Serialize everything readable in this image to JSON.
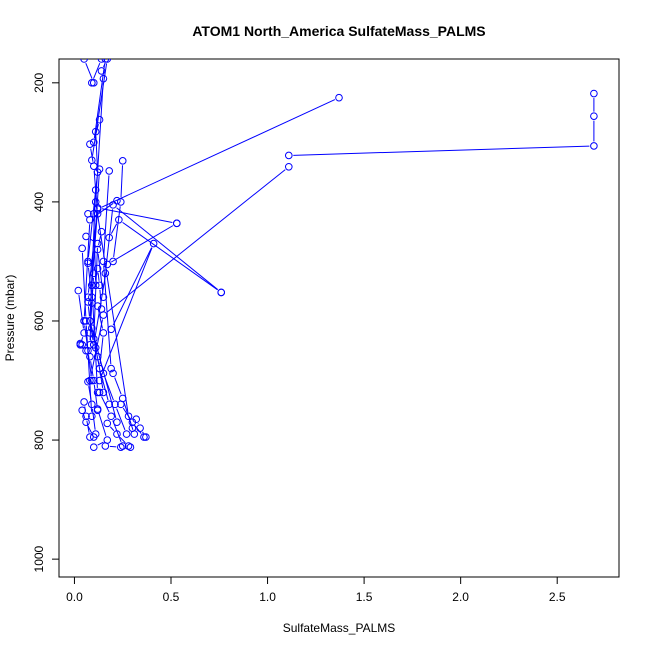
{
  "chart_data": {
    "type": "line",
    "title": "ATOM1 North_America SulfateMass_PALMS",
    "xlabel": "SulfateMass_PALMS",
    "ylabel": "Pressure (mbar)",
    "xlim": [
      -0.08,
      2.82
    ],
    "ylim": [
      1030,
      160
    ],
    "y_reversed": true,
    "x_ticks": [
      0.0,
      0.5,
      1.0,
      1.5,
      2.0,
      2.5
    ],
    "x_tick_labels": [
      "0.0",
      "0.5",
      "1.0",
      "1.5",
      "2.0",
      "2.5"
    ],
    "y_ticks": [
      200,
      400,
      600,
      800,
      1000
    ],
    "y_tick_labels": [
      "200",
      "400",
      "600",
      "800",
      "1000"
    ],
    "grid": false,
    "legend": "none",
    "colors": {
      "series": "#0000ff",
      "axis": "#000000"
    },
    "series": [
      {
        "values": [
          [
            2.69,
            218
          ],
          [
            2.69,
            256
          ],
          [
            2.69,
            306
          ],
          [
            1.11,
            322
          ]
        ]
      },
      {
        "values": [
          [
            1.37,
            225
          ],
          [
            0.12,
            412
          ],
          [
            0.09,
            540
          ]
        ]
      },
      {
        "values": [
          [
            1.11,
            341
          ],
          [
            0.15,
            590
          ],
          [
            0.08,
            700
          ]
        ]
      },
      {
        "values": [
          [
            0.76,
            552
          ],
          [
            0.2,
            405
          ],
          [
            0.16,
            520
          ]
        ]
      },
      {
        "values": [
          [
            0.76,
            552
          ],
          [
            0.23,
            430
          ],
          [
            0.18,
            460
          ]
        ]
      },
      {
        "values": [
          [
            0.53,
            436
          ],
          [
            0.17,
            505
          ],
          [
            0.1,
            640
          ]
        ]
      },
      {
        "values": [
          [
            0.53,
            436
          ],
          [
            0.12,
            410
          ],
          [
            0.07,
            560
          ]
        ]
      },
      {
        "values": [
          [
            0.22,
            398
          ],
          [
            0.08,
            430
          ],
          [
            0.05,
            600
          ]
        ]
      },
      {
        "values": [
          [
            0.19,
            614
          ],
          [
            0.41,
            470
          ],
          [
            0.13,
            700
          ]
        ]
      },
      {
        "values": [
          [
            0.25,
            331
          ],
          [
            0.24,
            400
          ],
          [
            0.2,
            500
          ]
        ]
      },
      {
        "values": [
          [
            0.09,
            200
          ],
          [
            0.14,
            160
          ]
        ]
      },
      {
        "values": [
          [
            0.1,
            200
          ],
          [
            0.05,
            160
          ]
        ]
      },
      {
        "values": [
          [
            0.15,
            193
          ],
          [
            0.11,
            400
          ],
          [
            0.28,
            760
          ],
          [
            0.3,
            780
          ]
        ]
      },
      {
        "values": [
          [
            0.13,
            262
          ],
          [
            0.1,
            300
          ],
          [
            0.16,
            160
          ]
        ]
      },
      {
        "values": [
          [
            0.11,
            282
          ],
          [
            0.12,
            350
          ],
          [
            0.07,
            500
          ]
        ]
      },
      {
        "values": [
          [
            0.08,
            303
          ],
          [
            0.1,
            340
          ],
          [
            0.12,
            420
          ]
        ]
      },
      {
        "values": [
          [
            0.09,
            330
          ],
          [
            0.17,
            160
          ],
          [
            0.14,
            180
          ]
        ]
      },
      {
        "values": [
          [
            0.13,
            345
          ],
          [
            0.09,
            540
          ],
          [
            0.12,
            720
          ]
        ]
      },
      {
        "values": [
          [
            0.18,
            348
          ],
          [
            0.15,
            500
          ],
          [
            0.19,
            680
          ]
        ]
      },
      {
        "values": [
          [
            0.11,
            380
          ],
          [
            0.08,
            600
          ],
          [
            0.22,
            770
          ]
        ]
      },
      {
        "values": [
          [
            0.07,
            420
          ],
          [
            0.1,
            420
          ],
          [
            0.11,
            540
          ]
        ]
      },
      {
        "values": [
          [
            0.04,
            478
          ],
          [
            0.06,
            600
          ],
          [
            0.09,
            760
          ]
        ]
      },
      {
        "values": [
          [
            0.06,
            458
          ],
          [
            0.12,
            470
          ],
          [
            0.1,
            630
          ]
        ]
      },
      {
        "values": [
          [
            0.14,
            450
          ],
          [
            0.12,
            480
          ],
          [
            0.15,
            560
          ]
        ]
      },
      {
        "values": [
          [
            0.07,
            503
          ],
          [
            0.09,
            560
          ],
          [
            0.08,
            640
          ]
        ]
      },
      {
        "values": [
          [
            0.12,
            512
          ],
          [
            0.13,
            540
          ],
          [
            0.14,
            580
          ]
        ]
      },
      {
        "values": [
          [
            0.02,
            549
          ],
          [
            0.05,
            620
          ],
          [
            0.03,
            640
          ]
        ]
      },
      {
        "values": [
          [
            0.1,
            520
          ],
          [
            0.09,
            570
          ],
          [
            0.08,
            620
          ]
        ]
      },
      {
        "values": [
          [
            0.07,
            568
          ],
          [
            0.08,
            600
          ],
          [
            0.1,
            640
          ]
        ]
      },
      {
        "values": [
          [
            0.12,
            575
          ],
          [
            0.15,
            620
          ],
          [
            0.13,
            680
          ]
        ]
      },
      {
        "values": [
          [
            0.05,
            600
          ],
          [
            0.07,
            650
          ],
          [
            0.09,
            700
          ]
        ]
      },
      {
        "values": [
          [
            0.09,
            612
          ],
          [
            0.12,
            660
          ],
          [
            0.15,
            720
          ]
        ]
      },
      {
        "values": [
          [
            0.03,
            638
          ],
          [
            0.04,
            640
          ],
          [
            0.06,
            650
          ]
        ]
      },
      {
        "values": [
          [
            0.11,
            645
          ],
          [
            0.13,
            680
          ],
          [
            0.18,
            740
          ]
        ]
      },
      {
        "values": [
          [
            0.08,
            660
          ],
          [
            0.1,
            700
          ],
          [
            0.12,
            750
          ]
        ]
      },
      {
        "values": [
          [
            0.15,
            688
          ],
          [
            0.21,
            740
          ],
          [
            0.27,
            790
          ]
        ]
      },
      {
        "values": [
          [
            0.07,
            702
          ],
          [
            0.09,
            740
          ],
          [
            0.11,
            790
          ]
        ]
      },
      {
        "values": [
          [
            0.13,
            720
          ],
          [
            0.19,
            760
          ],
          [
            0.25,
            810
          ]
        ]
      },
      {
        "values": [
          [
            0.05,
            736
          ],
          [
            0.06,
            760
          ],
          [
            0.08,
            795
          ]
        ]
      },
      {
        "values": [
          [
            0.24,
            740
          ],
          [
            0.3,
            770
          ],
          [
            0.36,
            795
          ]
        ]
      },
      {
        "values": [
          [
            0.04,
            750
          ],
          [
            0.06,
            770
          ],
          [
            0.1,
            795
          ]
        ]
      },
      {
        "values": [
          [
            0.17,
            772
          ],
          [
            0.22,
            790
          ],
          [
            0.28,
            810
          ]
        ]
      },
      {
        "values": [
          [
            0.32,
            765
          ],
          [
            0.34,
            780
          ],
          [
            0.37,
            795
          ]
        ]
      },
      {
        "values": [
          [
            0.2,
            688
          ],
          [
            0.25,
            730
          ],
          [
            0.31,
            790
          ]
        ]
      },
      {
        "values": [
          [
            0.12,
            748
          ],
          [
            0.17,
            800
          ],
          [
            0.1,
            812
          ]
        ]
      },
      {
        "values": [
          [
            0.16,
            810
          ],
          [
            0.24,
            812
          ],
          [
            0.29,
            812
          ]
        ]
      }
    ]
  }
}
